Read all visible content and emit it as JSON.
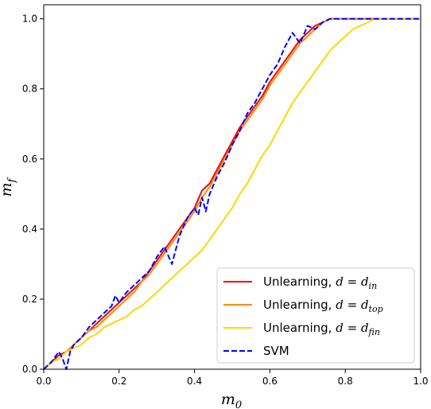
{
  "chart_data": {
    "type": "line",
    "title": "",
    "xlabel": "m",
    "xlabel_sub": "0",
    "ylabel": "m",
    "ylabel_sub": "f",
    "xlim": [
      0.0,
      1.0
    ],
    "ylim": [
      0.0,
      1.04
    ],
    "xticks": [
      "0.0",
      "0.2",
      "0.4",
      "0.6",
      "0.8",
      "1.0"
    ],
    "yticks": [
      "0.0",
      "0.2",
      "0.4",
      "0.6",
      "0.8",
      "1.0"
    ],
    "grid": false,
    "legend_position": "lower-right",
    "series": [
      {
        "name_prefix": "Unlearning, ",
        "name_var": "d",
        "name_eq": " = ",
        "name_base": "d",
        "name_sub": "in",
        "color": "#ff0000",
        "dash": "solid",
        "x": [
          0.0,
          0.02,
          0.04,
          0.06,
          0.08,
          0.1,
          0.12,
          0.14,
          0.16,
          0.18,
          0.2,
          0.22,
          0.24,
          0.26,
          0.28,
          0.3,
          0.32,
          0.34,
          0.36,
          0.38,
          0.4,
          0.42,
          0.44,
          0.46,
          0.48,
          0.5,
          0.52,
          0.54,
          0.56,
          0.58,
          0.6,
          0.62,
          0.64,
          0.66,
          0.68,
          0.7,
          0.72,
          0.74,
          0.76,
          0.78,
          0.8,
          0.85,
          0.9,
          0.95,
          1.0
        ],
        "y": [
          0.0,
          0.02,
          0.04,
          0.05,
          0.07,
          0.09,
          0.11,
          0.13,
          0.15,
          0.17,
          0.19,
          0.21,
          0.23,
          0.25,
          0.28,
          0.31,
          0.34,
          0.37,
          0.4,
          0.43,
          0.46,
          0.51,
          0.53,
          0.57,
          0.61,
          0.65,
          0.69,
          0.72,
          0.75,
          0.78,
          0.82,
          0.85,
          0.88,
          0.91,
          0.94,
          0.96,
          0.98,
          0.99,
          1.0,
          1.0,
          1.0,
          1.0,
          1.0,
          1.0,
          1.0
        ]
      },
      {
        "name_prefix": "Unlearning, ",
        "name_var": "d",
        "name_eq": " = ",
        "name_base": "d",
        "name_sub": "top",
        "color": "#ff8c00",
        "dash": "solid",
        "x": [
          0.0,
          0.02,
          0.04,
          0.06,
          0.08,
          0.1,
          0.12,
          0.14,
          0.16,
          0.18,
          0.2,
          0.22,
          0.24,
          0.26,
          0.28,
          0.3,
          0.32,
          0.34,
          0.36,
          0.38,
          0.4,
          0.42,
          0.44,
          0.46,
          0.48,
          0.5,
          0.52,
          0.54,
          0.56,
          0.58,
          0.6,
          0.62,
          0.64,
          0.66,
          0.68,
          0.7,
          0.72,
          0.74,
          0.76,
          0.78,
          0.8,
          0.85,
          0.9,
          0.95,
          1.0
        ],
        "y": [
          0.0,
          0.02,
          0.03,
          0.05,
          0.07,
          0.09,
          0.11,
          0.12,
          0.14,
          0.16,
          0.18,
          0.2,
          0.22,
          0.25,
          0.27,
          0.3,
          0.33,
          0.36,
          0.39,
          0.42,
          0.45,
          0.49,
          0.52,
          0.56,
          0.6,
          0.64,
          0.68,
          0.71,
          0.74,
          0.77,
          0.81,
          0.84,
          0.87,
          0.9,
          0.93,
          0.95,
          0.97,
          0.99,
          1.0,
          1.0,
          1.0,
          1.0,
          1.0,
          1.0,
          1.0
        ]
      },
      {
        "name_prefix": "Unlearning, ",
        "name_var": "d",
        "name_eq": " = ",
        "name_base": "d",
        "name_sub": "fin",
        "color": "#ffd700",
        "dash": "solid",
        "x": [
          0.0,
          0.02,
          0.04,
          0.06,
          0.08,
          0.1,
          0.12,
          0.14,
          0.16,
          0.18,
          0.2,
          0.22,
          0.24,
          0.26,
          0.28,
          0.3,
          0.32,
          0.34,
          0.36,
          0.38,
          0.4,
          0.42,
          0.44,
          0.46,
          0.48,
          0.5,
          0.52,
          0.54,
          0.56,
          0.58,
          0.6,
          0.62,
          0.64,
          0.66,
          0.68,
          0.7,
          0.72,
          0.74,
          0.76,
          0.78,
          0.8,
          0.82,
          0.84,
          0.86,
          0.88,
          0.9,
          0.95,
          1.0
        ],
        "y": [
          0.0,
          0.02,
          0.03,
          0.05,
          0.06,
          0.07,
          0.09,
          0.1,
          0.12,
          0.13,
          0.14,
          0.15,
          0.17,
          0.18,
          0.2,
          0.22,
          0.24,
          0.26,
          0.28,
          0.3,
          0.32,
          0.34,
          0.37,
          0.4,
          0.43,
          0.46,
          0.5,
          0.53,
          0.57,
          0.61,
          0.64,
          0.68,
          0.72,
          0.76,
          0.79,
          0.82,
          0.85,
          0.88,
          0.91,
          0.93,
          0.95,
          0.97,
          0.98,
          0.99,
          1.0,
          1.0,
          1.0,
          1.0
        ]
      },
      {
        "name_prefix": "SVM",
        "name_var": "",
        "name_eq": "",
        "name_base": "",
        "name_sub": "",
        "color": "#0000ff",
        "dash": "dashed",
        "x": [
          0.0,
          0.02,
          0.04,
          0.05,
          0.06,
          0.07,
          0.08,
          0.1,
          0.12,
          0.14,
          0.16,
          0.18,
          0.19,
          0.2,
          0.22,
          0.24,
          0.26,
          0.28,
          0.3,
          0.32,
          0.34,
          0.36,
          0.38,
          0.4,
          0.41,
          0.42,
          0.43,
          0.44,
          0.46,
          0.48,
          0.5,
          0.52,
          0.54,
          0.56,
          0.58,
          0.6,
          0.62,
          0.64,
          0.66,
          0.68,
          0.7,
          0.72,
          0.74,
          0.76,
          0.78,
          0.8,
          0.85,
          0.9,
          0.95,
          1.0
        ],
        "y": [
          0.0,
          0.02,
          0.05,
          0.03,
          0.0,
          0.05,
          0.07,
          0.09,
          0.12,
          0.14,
          0.16,
          0.18,
          0.21,
          0.19,
          0.22,
          0.24,
          0.26,
          0.28,
          0.32,
          0.35,
          0.3,
          0.38,
          0.43,
          0.46,
          0.44,
          0.49,
          0.45,
          0.5,
          0.55,
          0.59,
          0.64,
          0.68,
          0.73,
          0.76,
          0.8,
          0.84,
          0.87,
          0.92,
          0.96,
          0.93,
          0.98,
          0.97,
          0.99,
          1.0,
          1.0,
          1.0,
          1.0,
          1.0,
          1.0,
          1.0
        ]
      }
    ]
  }
}
